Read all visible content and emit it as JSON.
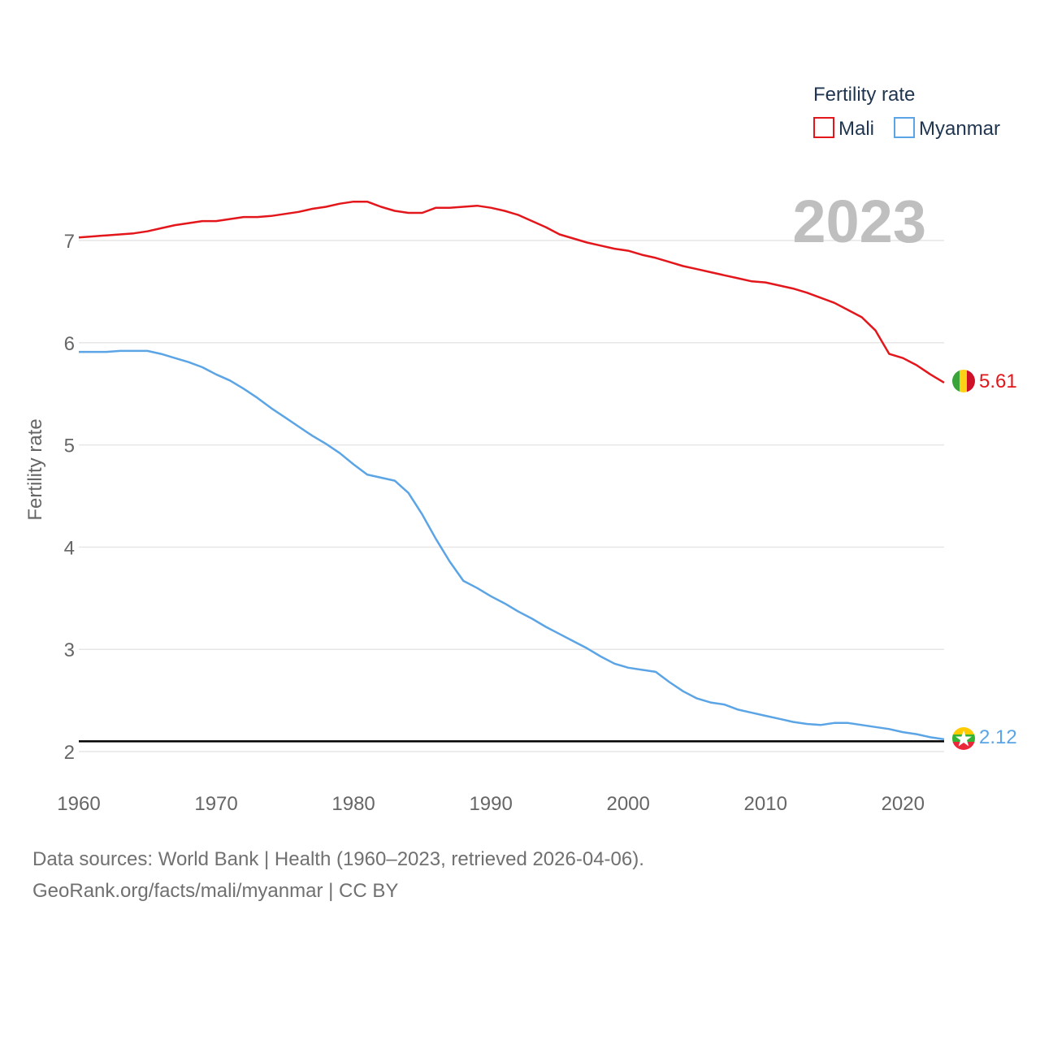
{
  "chart_data": {
    "type": "line",
    "year_label": "2023",
    "ylabel": "Fertility rate",
    "xlim": [
      1960,
      2023
    ],
    "ylim": [
      2,
      7.4
    ],
    "x_ticks": [
      1960,
      1970,
      1980,
      1990,
      2000,
      2010,
      2020
    ],
    "y_ticks": [
      2,
      3,
      4,
      5,
      6,
      7
    ],
    "grid": true,
    "legend": {
      "title": "Fertility rate",
      "position": "top-right"
    },
    "reference_line": {
      "value": 2.1,
      "color": "#000000"
    },
    "x": [
      1960,
      1961,
      1962,
      1963,
      1964,
      1965,
      1966,
      1967,
      1968,
      1969,
      1970,
      1971,
      1972,
      1973,
      1974,
      1975,
      1976,
      1977,
      1978,
      1979,
      1980,
      1981,
      1982,
      1983,
      1984,
      1985,
      1986,
      1987,
      1988,
      1989,
      1990,
      1991,
      1992,
      1993,
      1994,
      1995,
      1996,
      1997,
      1998,
      1999,
      2000,
      2001,
      2002,
      2003,
      2004,
      2005,
      2006,
      2007,
      2008,
      2009,
      2010,
      2011,
      2012,
      2013,
      2014,
      2015,
      2016,
      2017,
      2018,
      2019,
      2020,
      2021,
      2022,
      2023
    ],
    "series": [
      {
        "name": "Mali",
        "color": "#e3161b",
        "end_label": "5.61",
        "flag": "mali-flag",
        "values": [
          7.03,
          7.04,
          7.05,
          7.06,
          7.07,
          7.09,
          7.12,
          7.15,
          7.17,
          7.19,
          7.19,
          7.21,
          7.23,
          7.23,
          7.24,
          7.26,
          7.28,
          7.31,
          7.33,
          7.36,
          7.38,
          7.38,
          7.33,
          7.29,
          7.27,
          7.27,
          7.32,
          7.32,
          7.33,
          7.34,
          7.32,
          7.29,
          7.25,
          7.19,
          7.13,
          7.06,
          7.02,
          6.98,
          6.95,
          6.92,
          6.9,
          6.86,
          6.83,
          6.79,
          6.75,
          6.72,
          6.69,
          6.66,
          6.63,
          6.6,
          6.59,
          6.56,
          6.53,
          6.49,
          6.44,
          6.39,
          6.32,
          6.25,
          6.12,
          5.89,
          5.85,
          5.78,
          5.69,
          5.61
        ]
      },
      {
        "name": "Myanmar",
        "color": "#5ba4e5",
        "end_label": "2.12",
        "flag": "myanmar-flag",
        "values": [
          5.91,
          5.91,
          5.91,
          5.92,
          5.92,
          5.92,
          5.89,
          5.85,
          5.81,
          5.76,
          5.69,
          5.63,
          5.55,
          5.46,
          5.36,
          5.27,
          5.18,
          5.09,
          5.01,
          4.92,
          4.81,
          4.71,
          4.68,
          4.65,
          4.53,
          4.32,
          4.08,
          3.86,
          3.67,
          3.6,
          3.52,
          3.45,
          3.37,
          3.3,
          3.22,
          3.15,
          3.08,
          3.01,
          2.93,
          2.86,
          2.82,
          2.8,
          2.78,
          2.68,
          2.59,
          2.52,
          2.48,
          2.46,
          2.41,
          2.38,
          2.35,
          2.32,
          2.29,
          2.27,
          2.26,
          2.28,
          2.28,
          2.26,
          2.24,
          2.22,
          2.19,
          2.17,
          2.14,
          2.12
        ]
      }
    ]
  },
  "footer": {
    "sources": "Data sources: World Bank | Health (1960–2023, retrieved 2026-04-06).",
    "credit": "GeoRank.org/facts/mali/myanmar | CC BY"
  }
}
